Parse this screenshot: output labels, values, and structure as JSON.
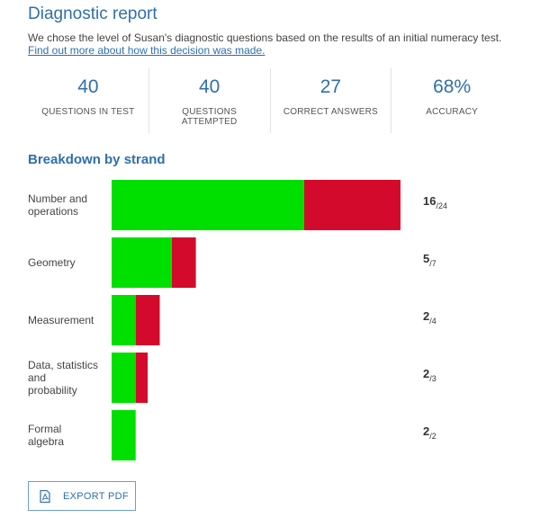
{
  "header": {
    "title": "Diagnostic report",
    "intro_text": "We chose the level of Susan's diagnostic questions based on the results of an initial numeracy test.",
    "learn_more_link": "Find out more about how this decision was made."
  },
  "stats": [
    {
      "value": "40",
      "label_line1": "QUESTIONS IN TEST",
      "label_line2": ""
    },
    {
      "value": "40",
      "label_line1": "QUESTIONS",
      "label_line2": "ATTEMPTED"
    },
    {
      "value": "27",
      "label_line1": "CORRECT ANSWERS",
      "label_line2": ""
    },
    {
      "value": "68%",
      "label_line1": "ACCURACY",
      "label_line2": ""
    }
  ],
  "breakdown": {
    "title": "Breakdown by strand"
  },
  "colors": {
    "correct": "#00e000",
    "incorrect": "#d40a2c",
    "accent": "#2f6fad"
  },
  "chart_data": {
    "type": "bar",
    "orientation": "horizontal",
    "stacked": true,
    "categories": [
      [
        "Number and",
        "operations"
      ],
      [
        "Geometry"
      ],
      [
        "Measurement"
      ],
      [
        "Data, statistics",
        "and",
        "probability"
      ],
      [
        "Formal",
        "algebra"
      ]
    ],
    "series": [
      {
        "values": [
          16,
          5,
          2,
          2,
          2
        ]
      },
      {
        "values": [
          8,
          2,
          2,
          1,
          0
        ]
      }
    ],
    "scores": [
      {
        "correct": "16",
        "total": "24"
      },
      {
        "correct": "5",
        "total": "7"
      },
      {
        "correct": "2",
        "total": "4"
      },
      {
        "correct": "2",
        "total": "3"
      },
      {
        "correct": "2",
        "total": "2"
      }
    ],
    "xlim": [
      0,
      24
    ],
    "legend": "none",
    "grid": false
  },
  "footer": {
    "export_label": "EXPORT PDF",
    "export_icon": "pdf-file-icon"
  }
}
